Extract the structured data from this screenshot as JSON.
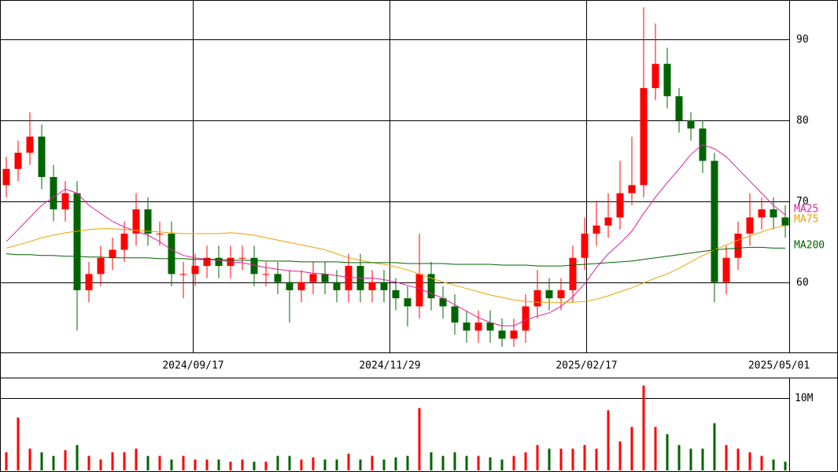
{
  "chart_data": {
    "type": "candlestick",
    "xlim": [
      -0.533,
      66.333
    ],
    "ylim": [
      51.3,
      94.9
    ],
    "yticks": [
      60,
      70,
      80,
      90
    ],
    "grid": true,
    "xticks": [
      {
        "value": 15.8,
        "label": "2024/09/17"
      },
      {
        "value": 32.47,
        "label": "2024/11/29"
      },
      {
        "value": 49.13,
        "label": "2025/02/17"
      },
      {
        "value": 66.33,
        "label": "2025/05/01"
      }
    ],
    "up_color": "#ff0000",
    "down_color": "#006400",
    "candles": {
      "open": [
        72,
        74,
        76,
        78,
        73,
        69,
        71,
        59,
        61,
        63,
        64,
        66,
        69,
        66,
        66,
        61,
        61,
        62,
        63,
        62,
        63,
        63,
        61,
        61,
        60,
        59,
        60,
        61,
        60,
        59,
        62,
        59,
        60,
        59,
        58,
        57,
        61,
        58,
        57,
        55,
        54,
        55,
        54,
        53,
        54,
        57,
        59,
        58,
        59,
        63,
        66,
        67,
        68,
        71,
        72,
        84,
        87,
        83,
        80,
        79,
        75,
        60,
        63,
        66,
        68,
        69,
        68
      ],
      "high": [
        75.5,
        77.5,
        81,
        79.5,
        74.5,
        72.5,
        72.5,
        62.5,
        64.5,
        65.5,
        67.5,
        71,
        70.5,
        67.5,
        67.5,
        62.5,
        63.5,
        64.5,
        64.5,
        64.5,
        64.5,
        64.5,
        62.5,
        62.5,
        61.5,
        61.5,
        62.5,
        62.5,
        61.5,
        63.5,
        63.5,
        61.5,
        61.5,
        60.5,
        59.5,
        66,
        62.5,
        59.5,
        58.5,
        56.5,
        56.5,
        56.5,
        55.5,
        55.5,
        58.5,
        61.5,
        60.5,
        60.5,
        64.5,
        68,
        70,
        71,
        75,
        78,
        94,
        92,
        89,
        84,
        81,
        80,
        76,
        64.5,
        67.5,
        71,
        70.5,
        70.5,
        69.5
      ],
      "low": [
        70.5,
        72.5,
        74.5,
        71.5,
        67.5,
        67.5,
        54,
        57.5,
        59.5,
        61.5,
        62.5,
        64.5,
        64.5,
        64.5,
        59.5,
        58,
        59.5,
        60.5,
        60.5,
        60.5,
        61.5,
        59.5,
        59.5,
        58.5,
        55,
        57.5,
        58.5,
        58.5,
        57.5,
        57.5,
        57.5,
        57.5,
        57.5,
        56.5,
        54.5,
        55.5,
        56.5,
        55.5,
        53.5,
        52.5,
        52.5,
        52.5,
        52,
        52,
        52.5,
        55.5,
        56.5,
        56.5,
        57.5,
        61.5,
        64.5,
        65.5,
        66.5,
        69.5,
        70.5,
        82.5,
        81.5,
        78.5,
        77.5,
        73.5,
        57.5,
        58.5,
        61.5,
        64.5,
        66.5,
        66.5,
        65.5
      ],
      "close": [
        74,
        76,
        78,
        73,
        69,
        71,
        59,
        61,
        63,
        64,
        66,
        69,
        66,
        66,
        61,
        61,
        62,
        63,
        62,
        63,
        63,
        61,
        61,
        60,
        59,
        60,
        61,
        60,
        59,
        62,
        59,
        60,
        59,
        58,
        57,
        61,
        58,
        57,
        55,
        54,
        55,
        54,
        53,
        54,
        57,
        59,
        58,
        59,
        63,
        66,
        67,
        68,
        71,
        72,
        84,
        87,
        83,
        80,
        79,
        75,
        60,
        63,
        66,
        68,
        69,
        68,
        67
      ]
    },
    "series": [
      {
        "name": "MA25",
        "color": "#e020a0",
        "values": [
          65,
          66.5,
          68,
          69.5,
          70.5,
          71.5,
          71,
          69.5,
          68.5,
          67.5,
          66.8,
          66.3,
          65.8,
          65,
          64,
          63.3,
          63,
          62.8,
          62.7,
          62.5,
          62.4,
          62.1,
          61.8,
          61.6,
          61.4,
          61.3,
          61.1,
          61,
          60.8,
          60.6,
          60.5,
          60.5,
          60.3,
          60,
          59.6,
          59.2,
          58.6,
          58,
          57.2,
          56.4,
          55.6,
          55,
          54.6,
          54.6,
          55.3,
          55.8,
          56.2,
          57,
          58.2,
          59.8,
          61.8,
          63.5,
          64.8,
          66.3,
          68.5,
          70.5,
          72.3,
          74,
          75.8,
          77,
          76.5,
          75.5,
          74,
          72.5,
          71,
          69.5,
          68.3
        ]
      },
      {
        "name": "MA75",
        "color": "#f0a000",
        "values": [
          64.2,
          64.6,
          65,
          65.5,
          65.8,
          66.1,
          66.3,
          66.5,
          66.6,
          66.6,
          66.5,
          66.4,
          66.3,
          66.2,
          66.1,
          66,
          66,
          66,
          66,
          66.1,
          66,
          65.8,
          65.5,
          65.2,
          64.9,
          64.6,
          64.3,
          64,
          63.5,
          63,
          62.7,
          62.4,
          62.2,
          61.9,
          61.5,
          61,
          60.5,
          60,
          59.6,
          59.2,
          58.8,
          58.4,
          58.1,
          57.8,
          57.6,
          57.5,
          57.5,
          57.5,
          57.5,
          57.6,
          57.9,
          58.3,
          58.8,
          59.3,
          59.9,
          60.5,
          61,
          61.7,
          62.5,
          63.3,
          64,
          64.6,
          65.2,
          65.7,
          66.2,
          66.7,
          67
        ]
      },
      {
        "name": "MA200",
        "color": "#006400",
        "values": [
          63.5,
          63.4,
          63.4,
          63.3,
          63.3,
          63.2,
          63.2,
          63.1,
          63.1,
          63,
          63,
          63,
          63,
          62.9,
          62.9,
          62.9,
          62.8,
          62.8,
          62.8,
          62.7,
          62.7,
          62.7,
          62.6,
          62.6,
          62.6,
          62.5,
          62.5,
          62.5,
          62.5,
          62.4,
          62.4,
          62.4,
          62.4,
          62.4,
          62.3,
          62.3,
          62.3,
          62.3,
          62.2,
          62.2,
          62.2,
          62.2,
          62.1,
          62.1,
          62.1,
          62,
          62,
          62,
          62.1,
          62.2,
          62.3,
          62.4,
          62.5,
          62.6,
          62.8,
          63,
          63.2,
          63.4,
          63.6,
          63.8,
          64,
          64.1,
          64.2,
          64.3,
          64.3,
          64.2,
          64.2
        ]
      }
    ],
    "volume": {
      "ylim": [
        0,
        12700000
      ],
      "yticks": [
        {
          "value": 10000000,
          "label": "10M"
        }
      ],
      "values": [
        2500000,
        7300000,
        3000000,
        2500000,
        2000000,
        2800000,
        3500000,
        2000000,
        1500000,
        2500000,
        2500000,
        3000000,
        2000000,
        2000000,
        1500000,
        2000000,
        1500000,
        1500000,
        1500000,
        1200000,
        1500000,
        1200000,
        1200000,
        2000000,
        2000000,
        1500000,
        1800000,
        1500000,
        1500000,
        2300000,
        1500000,
        2000000,
        1500000,
        1800000,
        2000000,
        8600000,
        2500000,
        2000000,
        2500000,
        2000000,
        2000000,
        1800000,
        1500000,
        2000000,
        2500000,
        3500000,
        3000000,
        3000000,
        3000000,
        3500000,
        3000000,
        8300000,
        4000000,
        6000000,
        11700000,
        6000000,
        5000000,
        3500000,
        3000000,
        3000000,
        6500000,
        3500000,
        3000000,
        2500000,
        2000000,
        1500000,
        1200000
      ]
    }
  }
}
